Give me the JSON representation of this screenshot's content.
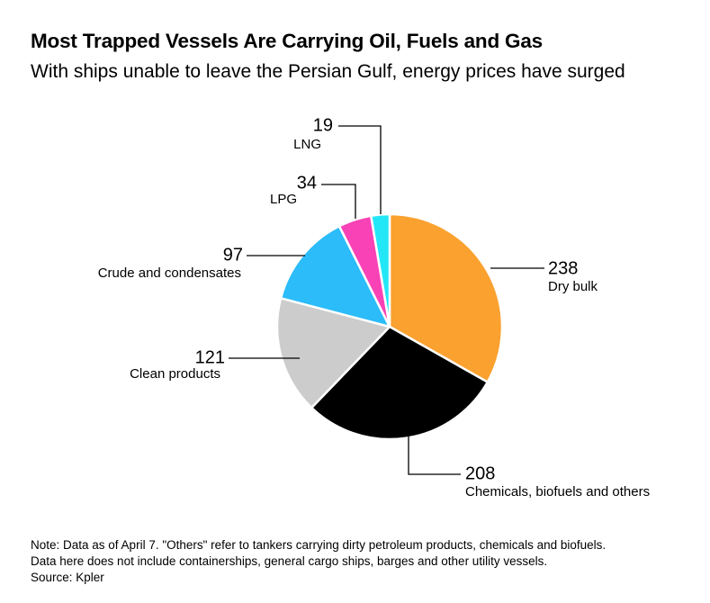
{
  "title": "Most Trapped Vessels Are Carrying Oil, Fuels and Gas",
  "subtitle": "With ships unable to leave the Persian Gulf, energy prices have surged",
  "chart_data": {
    "type": "pie",
    "title": "Most Trapped Vessels Are Carrying Oil, Fuels and Gas",
    "subtitle": "With ships unable to leave the Persian Gulf, energy prices have surged",
    "slices": [
      {
        "label": "Dry bulk",
        "value": 238,
        "value_label": "238",
        "color": "#fba12f"
      },
      {
        "label": "Chemicals, biofuels and others",
        "value": 208,
        "value_label": "208",
        "color": "#000000"
      },
      {
        "label": "Clean products",
        "value": 121,
        "value_label": "121",
        "color": "#cccccc"
      },
      {
        "label": "Crude and condensates",
        "value": 97,
        "value_label": "97",
        "color": "#2bbcf9"
      },
      {
        "label": "LPG",
        "value": 34,
        "value_label": "34",
        "color": "#f942b5"
      },
      {
        "label": "LNG",
        "value": 19,
        "value_label": "19",
        "color": "#23e7f7"
      }
    ]
  },
  "notes": {
    "line1": "Note: Data as of April 7. \"Others\" refer to tankers carrying dirty petroleum products, chemicals and biofuels.",
    "line2": "Data here does not include containerships, general cargo ships, barges and other utility vessels.",
    "source": "Source: Kpler"
  }
}
